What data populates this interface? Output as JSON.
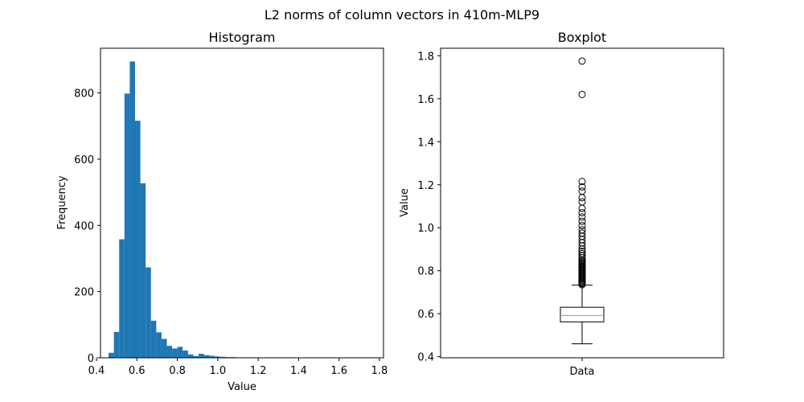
{
  "figure": {
    "suptitle": "L2 norms of column vectors in 410m-MLP9"
  },
  "chart_data": [
    {
      "type": "bar",
      "title": "Histogram",
      "xlabel": "Value",
      "ylabel": "Frequency",
      "xlim": [
        0.42,
        1.82
      ],
      "ylim": [
        0,
        935
      ],
      "xticks": [
        0.4,
        0.6,
        0.8,
        1.0,
        1.2,
        1.4,
        1.6,
        1.8
      ],
      "xtick_labels": [
        "0.4",
        "0.6",
        "0.8",
        "1.0",
        "1.2",
        "1.4",
        "1.6",
        "1.8"
      ],
      "yticks": [
        0,
        200,
        400,
        600,
        800
      ],
      "ytick_labels": [
        "0",
        "200",
        "400",
        "600",
        "800"
      ],
      "bar_color": "#1f77b4",
      "bin_start": 0.46,
      "bin_width": 0.0262,
      "values": [
        15,
        78,
        358,
        798,
        895,
        716,
        527,
        273,
        112,
        77,
        57,
        36,
        28,
        33,
        22,
        10,
        5,
        12,
        8,
        6,
        4,
        3,
        2,
        2,
        0,
        0,
        0,
        0,
        0,
        0,
        0,
        0,
        0,
        0,
        0,
        0,
        0,
        0,
        0,
        0,
        0,
        0,
        0,
        0,
        0,
        0,
        0,
        0,
        0,
        0
      ]
    },
    {
      "type": "box",
      "title": "Boxplot",
      "xlabel": "",
      "ylabel": "Value",
      "category": "Data",
      "ylim": [
        0.395,
        1.835
      ],
      "yticks": [
        0.4,
        0.6,
        0.8,
        1.0,
        1.2,
        1.4,
        1.6,
        1.8
      ],
      "ytick_labels": [
        "0.4",
        "0.6",
        "0.8",
        "1.0",
        "1.2",
        "1.4",
        "1.6",
        "1.8"
      ],
      "median_color": "#ff7f0e",
      "whisker_low": 0.46,
      "q1": 0.562,
      "median": 0.592,
      "q3": 0.63,
      "whisker_high": 0.733,
      "outliers": [
        0.735,
        0.74,
        0.745,
        0.75,
        0.755,
        0.76,
        0.765,
        0.77,
        0.775,
        0.78,
        0.785,
        0.79,
        0.795,
        0.8,
        0.805,
        0.81,
        0.815,
        0.82,
        0.825,
        0.83,
        0.835,
        0.84,
        0.845,
        0.85,
        0.86,
        0.87,
        0.88,
        0.89,
        0.9,
        0.915,
        0.93,
        0.945,
        0.96,
        0.975,
        0.99,
        1.01,
        1.03,
        1.05,
        1.07,
        1.09,
        1.12,
        1.14,
        1.17,
        1.19,
        1.215,
        1.62,
        1.775
      ]
    }
  ]
}
